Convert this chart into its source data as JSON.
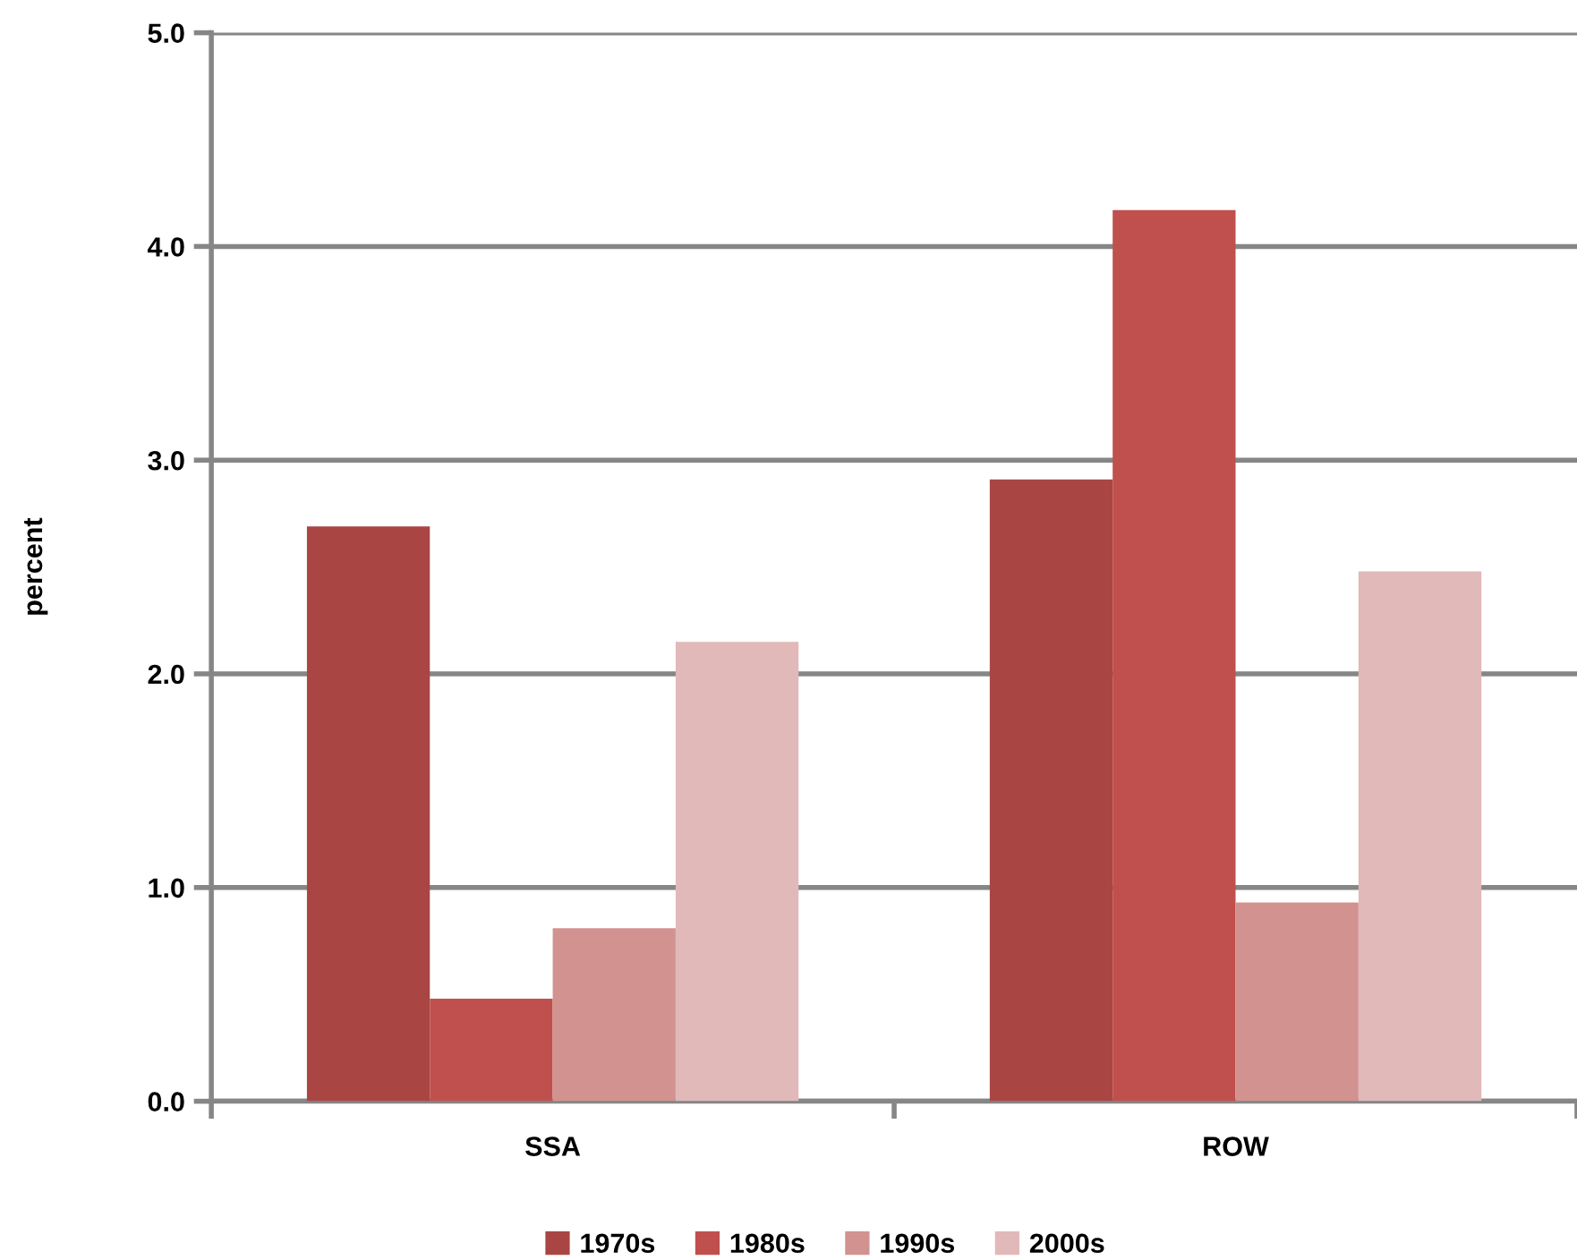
{
  "chart_data": {
    "type": "bar",
    "ylabel": "percent",
    "categories": [
      "SSA",
      "ROW"
    ],
    "series": [
      {
        "name": "1970s",
        "color": "#a94643",
        "values": [
          2.69,
          2.91
        ]
      },
      {
        "name": "1980s",
        "color": "#c0504d",
        "values": [
          0.48,
          4.17
        ]
      },
      {
        "name": "1990s",
        "color": "#d29290",
        "values": [
          0.81,
          0.93
        ]
      },
      {
        "name": "2000s",
        "color": "#e0b9b8",
        "values": [
          2.15,
          2.48
        ]
      }
    ],
    "ylim": [
      0,
      5
    ],
    "yticks": [
      {
        "value": 0,
        "label": "0.0"
      },
      {
        "value": 1,
        "label": "1.0"
      },
      {
        "value": 2,
        "label": "2.0"
      },
      {
        "value": 3,
        "label": "3.0"
      },
      {
        "value": 4,
        "label": "4.0"
      },
      {
        "value": 5,
        "label": "5.0"
      }
    ],
    "grid": "y",
    "legend": "bottom"
  }
}
